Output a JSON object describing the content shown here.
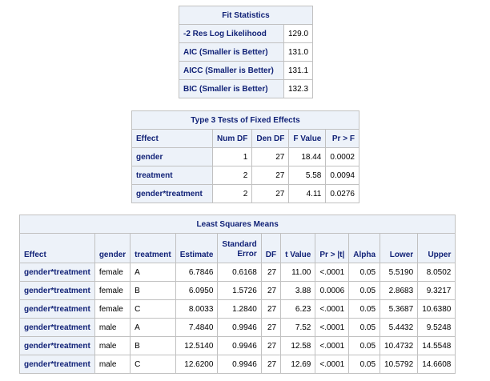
{
  "fit": {
    "title": "Fit Statistics",
    "rows": [
      {
        "label": "-2 Res Log Likelihood",
        "value": "129.0"
      },
      {
        "label": "AIC (Smaller is Better)",
        "value": "131.0"
      },
      {
        "label": "AICC (Smaller is Better)",
        "value": "131.1"
      },
      {
        "label": "BIC (Smaller is Better)",
        "value": "132.3"
      }
    ]
  },
  "type3": {
    "title": "Type 3 Tests of Fixed Effects",
    "headers": [
      "Effect",
      "Num DF",
      "Den DF",
      "F Value",
      "Pr > F"
    ],
    "rows": [
      {
        "effect": "gender",
        "num_df": "1",
        "den_df": "27",
        "f_value": "18.44",
        "pr": "0.0002"
      },
      {
        "effect": "treatment",
        "num_df": "2",
        "den_df": "27",
        "f_value": "5.58",
        "pr": "0.0094"
      },
      {
        "effect": "gender*treatment",
        "num_df": "2",
        "den_df": "27",
        "f_value": "4.11",
        "pr": "0.0276"
      }
    ]
  },
  "lsm": {
    "title": "Least Squares Means",
    "headers": {
      "effect": "Effect",
      "gender": "gender",
      "treatment": "treatment",
      "estimate": "Estimate",
      "stderr_1": "Standard",
      "stderr_2": "Error",
      "df": "DF",
      "tvalue": "t Value",
      "pr": "Pr > |t|",
      "alpha": "Alpha",
      "lower": "Lower",
      "upper": "Upper"
    },
    "rows": [
      {
        "effect": "gender*treatment",
        "gender": "female",
        "treatment": "A",
        "estimate": "6.7846",
        "stderr": "0.6168",
        "df": "27",
        "t": "11.00",
        "pr": "<.0001",
        "alpha": "0.05",
        "lower": "5.5190",
        "upper": "8.0502"
      },
      {
        "effect": "gender*treatment",
        "gender": "female",
        "treatment": "B",
        "estimate": "6.0950",
        "stderr": "1.5726",
        "df": "27",
        "t": "3.88",
        "pr": "0.0006",
        "alpha": "0.05",
        "lower": "2.8683",
        "upper": "9.3217"
      },
      {
        "effect": "gender*treatment",
        "gender": "female",
        "treatment": "C",
        "estimate": "8.0033",
        "stderr": "1.2840",
        "df": "27",
        "t": "6.23",
        "pr": "<.0001",
        "alpha": "0.05",
        "lower": "5.3687",
        "upper": "10.6380"
      },
      {
        "effect": "gender*treatment",
        "gender": "male",
        "treatment": "A",
        "estimate": "7.4840",
        "stderr": "0.9946",
        "df": "27",
        "t": "7.52",
        "pr": "<.0001",
        "alpha": "0.05",
        "lower": "5.4432",
        "upper": "9.5248"
      },
      {
        "effect": "gender*treatment",
        "gender": "male",
        "treatment": "B",
        "estimate": "12.5140",
        "stderr": "0.9946",
        "df": "27",
        "t": "12.58",
        "pr": "<.0001",
        "alpha": "0.05",
        "lower": "10.4732",
        "upper": "14.5548"
      },
      {
        "effect": "gender*treatment",
        "gender": "male",
        "treatment": "C",
        "estimate": "12.6200",
        "stderr": "0.9946",
        "df": "27",
        "t": "12.69",
        "pr": "<.0001",
        "alpha": "0.05",
        "lower": "10.5792",
        "upper": "14.6608"
      }
    ]
  }
}
